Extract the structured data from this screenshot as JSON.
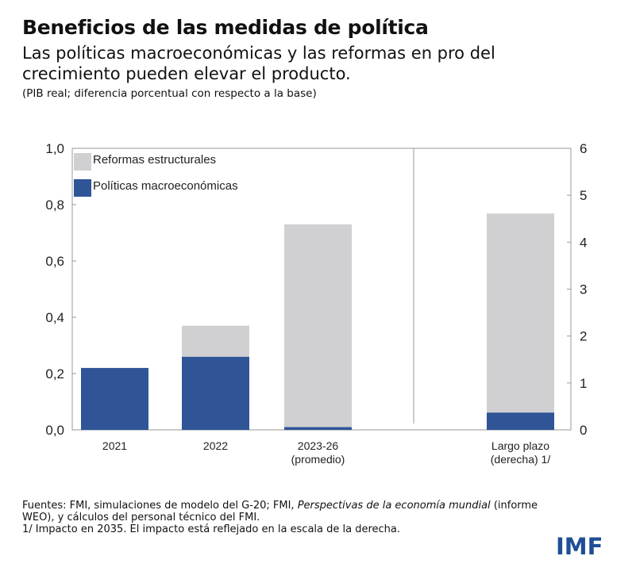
{
  "header": {
    "title": "Beneficios de las medidas de política",
    "subtitle": "Las políticas macroeconómicas y las reformas en pro del crecimiento pueden elevar el producto.",
    "unit": "(PIB real; diferencia porcentual con respecto a la base)"
  },
  "chart_data": {
    "type": "bar",
    "stacked": true,
    "categories": [
      "2021",
      "2022",
      "2023-26\n(promedio)",
      "Largo plazo\n(derecha) 1/"
    ],
    "category_lines": [
      [
        "2021"
      ],
      [
        "2022"
      ],
      [
        "2023-26",
        "(promedio)"
      ],
      [
        "Largo plazo",
        "(derecha) 1/"
      ]
    ],
    "axis": [
      "left",
      "left",
      "left",
      "right"
    ],
    "series": [
      {
        "name": "Políticas macroeconómicas",
        "color": "#2f5597",
        "values": [
          0.22,
          0.26,
          0.01,
          0.37
        ]
      },
      {
        "name": "Reformas estructurales",
        "color": "#d0d0d2",
        "values": [
          0,
          0.11,
          0.72,
          4.24
        ]
      }
    ],
    "ylim_left": [
      0,
      1.0
    ],
    "yticks_left": [
      "0,0",
      "0,2",
      "0,4",
      "0,6",
      "0,8",
      "1,0"
    ],
    "ylim_right": [
      0,
      6
    ],
    "yticks_right": [
      "0",
      "1",
      "2",
      "3",
      "4",
      "5",
      "6"
    ],
    "legend": "top-left"
  },
  "footer": {
    "note_a": "Fuentes: FMI, simulaciones de modelo del G-20; FMI, ",
    "note_italic": "Perspectivas de la economía mundial",
    "note_b": " (informe WEO), y cálculos del personal técnico del FMI.",
    "note2": "1/ Impacto en 2035. El impacto está reflejado en la escala de la derecha.",
    "logo": "IMF"
  }
}
